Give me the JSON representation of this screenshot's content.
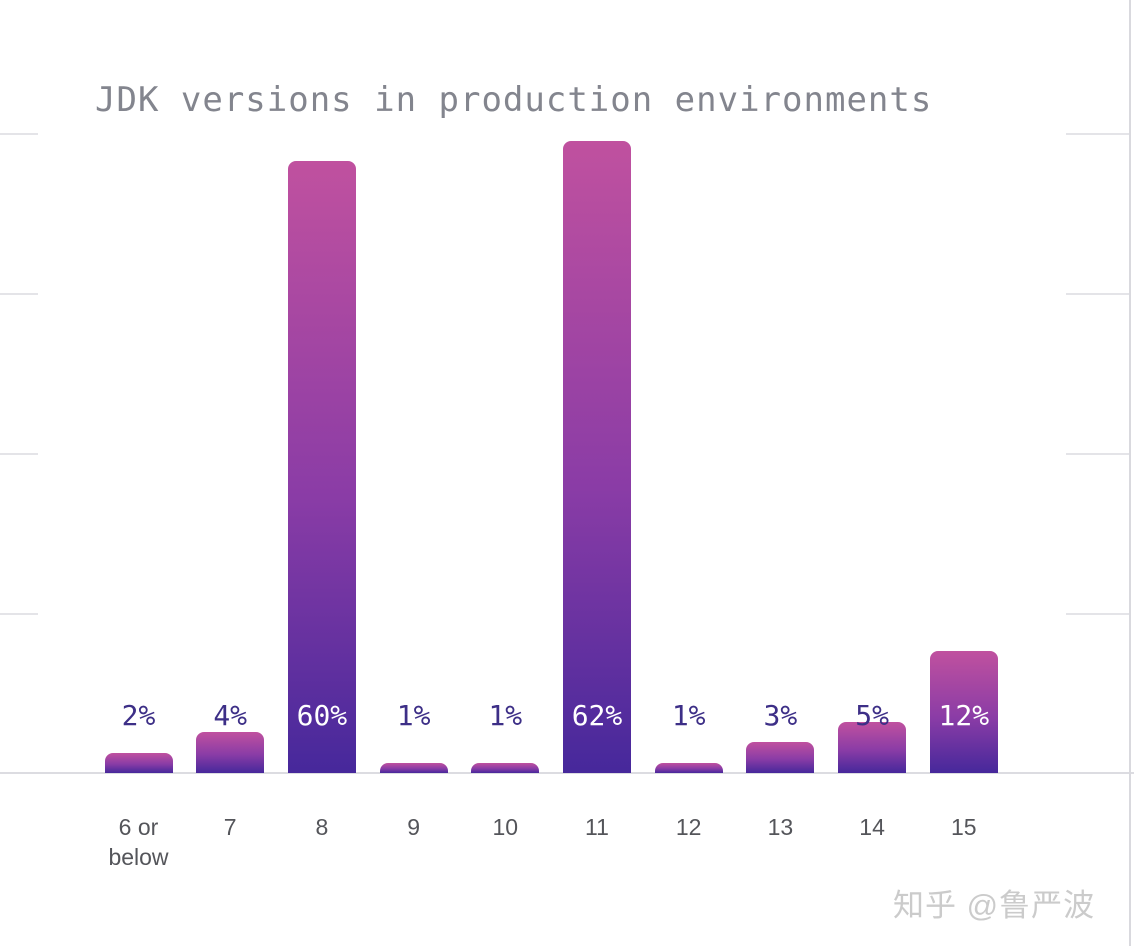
{
  "title": "JDK versions in production environments",
  "watermark": "知乎 @鲁严波",
  "colors": {
    "bar_gradient_top": "#c0519f",
    "bar_gradient_bottom": "#46289b",
    "value_label_outside": "#3d2f87",
    "value_label_inside": "#ffffff",
    "title_text": "#83858e",
    "category_text": "#54555a",
    "gridline": "#e4e4e8"
  },
  "chart_data": {
    "type": "bar",
    "title": "JDK versions in production environments",
    "categories": [
      "6 or below",
      "7",
      "8",
      "9",
      "10",
      "11",
      "12",
      "13",
      "14",
      "15"
    ],
    "values": [
      2,
      4,
      60,
      1,
      1,
      62,
      1,
      3,
      5,
      12
    ],
    "value_labels": [
      "2%",
      "4%",
      "60%",
      "1%",
      "1%",
      "62%",
      "1%",
      "3%",
      "5%",
      "12%"
    ],
    "unit": "%",
    "xlabel": "",
    "ylabel": "",
    "ylim": [
      0,
      63
    ],
    "grid": "faint horizontal gridlines (4), visible only as short segments at left and right edges; no y-axis tick labels; no legend",
    "legend": "none",
    "bar_style": "vertical bars, rounded top corners, pink-to-deep-purple vertical gradient; percentage labels all on one row near the bottom — white when the bar is tall enough to contain them, dark purple otherwise"
  }
}
